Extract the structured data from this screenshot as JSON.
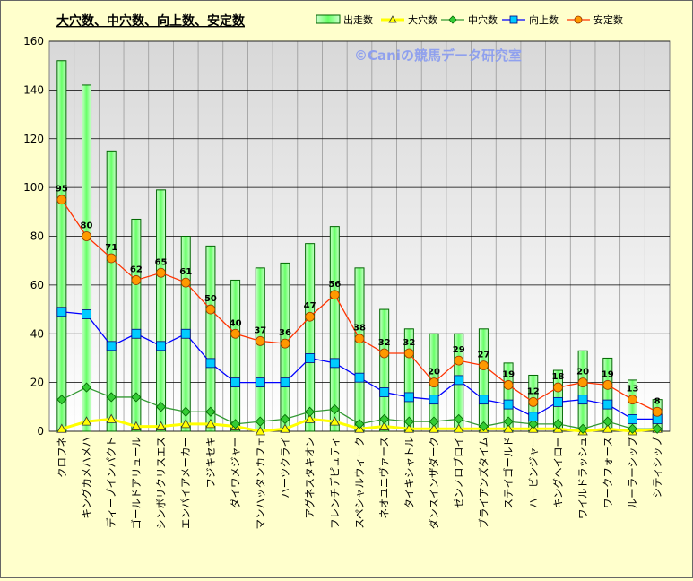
{
  "chart_data": {
    "type": "bar",
    "title": "大穴数、中穴数、向上数、安定数",
    "watermark": "©Caniの競馬データ研究室",
    "legend_placement": "top-right",
    "grid": true,
    "ylim": [
      0,
      160
    ],
    "yticks": [
      0,
      20,
      40,
      60,
      80,
      100,
      120,
      140,
      160
    ],
    "categories": [
      "クロフネ",
      "キングカメハメハ",
      "ディープインパクト",
      "ゴールドアリュール",
      "シンボリクリスエス",
      "エンパイアメーカー",
      "フジキセキ",
      "ダイワメジャー",
      "マンハッタンカフェ",
      "ハーツクライ",
      "アグネスタキオン",
      "フレンチデピュティ",
      "スペシャルウィーク",
      "ネオユニヴァース",
      "タイキシャトル",
      "ダンスインザダーク",
      "ゼンノロブロイ",
      "ブライアンズタイム",
      "ステイゴールド",
      "ハービンジャー",
      "キングヘイロー",
      "ワイルドラッシュ",
      "ワークフォース",
      "ルーラーシップ",
      "シティシップ"
    ],
    "series": [
      {
        "name": "出走数",
        "kind": "bar",
        "color": "#33cc33",
        "values": [
          152,
          142,
          115,
          87,
          99,
          80,
          76,
          62,
          67,
          69,
          77,
          84,
          67,
          50,
          42,
          40,
          40,
          42,
          28,
          23,
          25,
          33,
          30,
          21,
          13
        ]
      },
      {
        "name": "大穴数",
        "kind": "line",
        "marker": "triangle",
        "color": "#ffff00",
        "values": [
          1,
          4,
          5,
          2,
          2,
          3,
          3,
          2,
          0,
          1,
          5,
          4,
          1,
          2,
          1,
          1,
          1,
          1,
          1,
          1,
          1,
          0,
          1,
          0,
          1
        ]
      },
      {
        "name": "中穴数",
        "kind": "line",
        "marker": "diamond",
        "color": "#339933",
        "values": [
          13,
          18,
          14,
          14,
          10,
          8,
          8,
          3,
          4,
          5,
          8,
          9,
          3,
          5,
          4,
          4,
          5,
          2,
          4,
          3,
          3,
          1,
          4,
          1,
          1
        ]
      },
      {
        "name": "向上数",
        "kind": "line",
        "marker": "square",
        "color": "#0000ff",
        "values": [
          49,
          48,
          35,
          40,
          35,
          40,
          28,
          20,
          20,
          20,
          30,
          28,
          22,
          16,
          14,
          13,
          21,
          13,
          11,
          6,
          12,
          13,
          11,
          5,
          5
        ]
      },
      {
        "name": "安定数",
        "kind": "line",
        "marker": "circle",
        "color": "#ff3300",
        "values": [
          95,
          80,
          71,
          62,
          65,
          61,
          50,
          40,
          37,
          36,
          47,
          56,
          38,
          32,
          32,
          20,
          29,
          27,
          19,
          12,
          18,
          20,
          19,
          13,
          8
        ]
      }
    ]
  }
}
